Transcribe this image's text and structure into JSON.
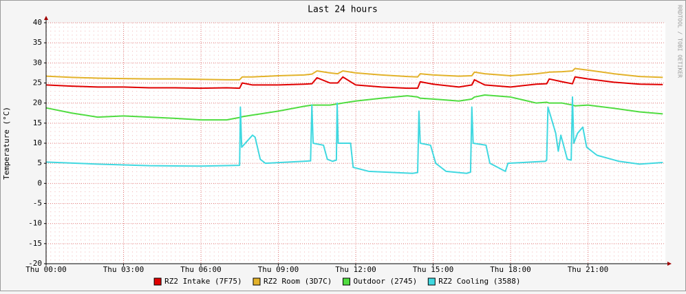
{
  "chart_data": {
    "type": "line",
    "title": "Last 24 hours",
    "ylabel": "Temperature (°C)",
    "watermark": "RRDTOOL / TOBI OETIKER",
    "xlim": [
      0,
      24
    ],
    "xticks": [
      {
        "value": 0,
        "label": "Thu 00:00"
      },
      {
        "value": 3,
        "label": "Thu 03:00"
      },
      {
        "value": 6,
        "label": "Thu 06:00"
      },
      {
        "value": 9,
        "label": "Thu 09:00"
      },
      {
        "value": 12,
        "label": "Thu 12:00"
      },
      {
        "value": 15,
        "label": "Thu 15:00"
      },
      {
        "value": 18,
        "label": "Thu 18:00"
      },
      {
        "value": 21,
        "label": "Thu 21:00"
      }
    ],
    "ylim": [
      -20,
      40
    ],
    "yticks": [
      -20,
      -15,
      -10,
      -5,
      0,
      5,
      10,
      15,
      20,
      25,
      30,
      35,
      40
    ],
    "grid": true,
    "legend": "bottom",
    "x": [
      0,
      1,
      2,
      3,
      4,
      5,
      6,
      7,
      7.5,
      7.6,
      8,
      9,
      10,
      10.3,
      10.5,
      11,
      11.3,
      11.5,
      12,
      13,
      14,
      14.4,
      14.5,
      15,
      16,
      16.5,
      16.6,
      17,
      18,
      19,
      19.4,
      19.5,
      20,
      20.4,
      20.5,
      21,
      22,
      23,
      23.9
    ],
    "series": [
      {
        "name": "RZ2 Intake (7F75)",
        "color": "#e00000",
        "values": [
          24.5,
          24.2,
          24,
          24,
          23.8,
          23.8,
          23.7,
          23.8,
          23.7,
          25,
          24.5,
          24.5,
          24.7,
          24.8,
          26.3,
          25,
          25,
          26.5,
          24.5,
          24,
          23.7,
          23.7,
          25.3,
          24.7,
          24,
          24.5,
          25.8,
          24.5,
          24,
          24.7,
          24.8,
          26,
          25.3,
          24.8,
          26.5,
          26,
          25.2,
          24.7,
          24.6
        ]
      },
      {
        "name": "RZ2 Room (3D7C)",
        "color": "#e3b22a",
        "values": [
          26.7,
          26.4,
          26.2,
          26.1,
          26,
          26,
          25.9,
          25.8,
          25.8,
          26.5,
          26.5,
          26.8,
          27,
          27.2,
          28,
          27.5,
          27.3,
          28,
          27.5,
          27,
          26.6,
          26.5,
          27.3,
          27,
          26.7,
          26.8,
          27.7,
          27.3,
          26.8,
          27.3,
          27.6,
          27.7,
          27.8,
          28,
          28.6,
          28.2,
          27.3,
          26.6,
          26.4
        ]
      },
      {
        "name": "Outdoor (2745)",
        "color": "#50dc40",
        "values": [
          18.8,
          17.5,
          16.5,
          16.8,
          16.5,
          16.2,
          15.8,
          15.8,
          16.4,
          16.6,
          17,
          18,
          19.2,
          19.5,
          19.5,
          19.5,
          19.8,
          20,
          20.5,
          21.2,
          21.8,
          21.5,
          21.2,
          21,
          20.5,
          21,
          21.5,
          22,
          21.5,
          20,
          20.2,
          20,
          20,
          19.5,
          19.3,
          19.5,
          18.7,
          17.8,
          17.3
        ]
      },
      {
        "name": "RZ2 Cooling (3588)",
        "color": "#40d8e0",
        "x": [
          0,
          2,
          4,
          6,
          7.5,
          7.53,
          7.58,
          8,
          8.1,
          8.3,
          8.5,
          10,
          10.25,
          10.3,
          10.35,
          10.75,
          10.9,
          11.1,
          11.25,
          11.28,
          11.32,
          11.8,
          11.9,
          12.5,
          14.2,
          14.4,
          14.45,
          14.5,
          14.9,
          15.1,
          15.5,
          16.3,
          16.45,
          16.5,
          16.55,
          17.05,
          17.2,
          17.8,
          17.9,
          19.35,
          19.4,
          19.45,
          19.75,
          19.85,
          19.95,
          20.2,
          20.35,
          20.4,
          20.45,
          20.6,
          20.8,
          20.95,
          21.35,
          22.2,
          23,
          23.9
        ],
        "values": [
          5.3,
          4.8,
          4.4,
          4.3,
          4.5,
          19,
          9,
          12,
          11.5,
          6,
          5,
          5.5,
          5.6,
          19.5,
          10,
          9.5,
          6,
          5.5,
          5.8,
          20,
          10,
          10,
          4,
          3,
          2.5,
          2.7,
          18,
          10,
          9.5,
          5,
          3,
          2.5,
          2.8,
          19,
          10,
          9.5,
          5,
          3,
          5,
          5.5,
          5.8,
          19,
          12.5,
          8,
          12,
          6,
          5.8,
          21.5,
          10,
          12.5,
          14,
          9,
          7,
          5.5,
          4.8,
          5.2
        ]
      }
    ]
  }
}
